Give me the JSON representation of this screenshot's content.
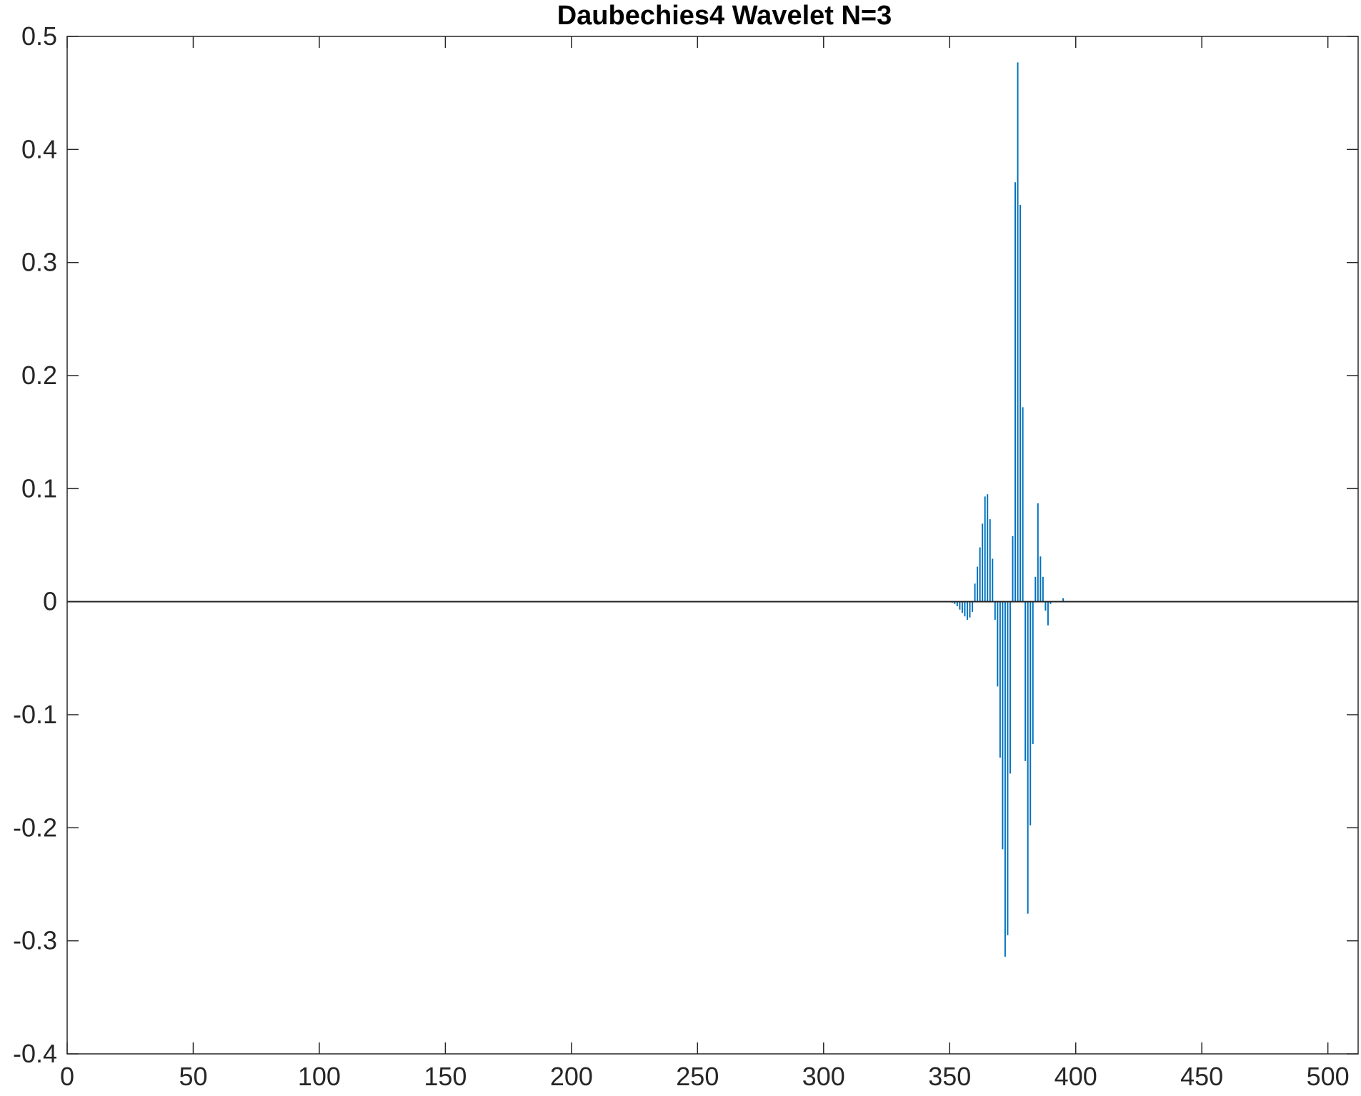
{
  "chart_data": {
    "type": "bar",
    "title": "Daubechies4 Wavelet N=3",
    "xlabel": "",
    "ylabel": "",
    "xlim": [
      0,
      512
    ],
    "ylim": [
      -0.4,
      0.5
    ],
    "xticks": [
      0,
      50,
      100,
      150,
      200,
      250,
      300,
      350,
      400,
      450,
      500
    ],
    "yticks": [
      -0.4,
      -0.3,
      -0.2,
      -0.1,
      0,
      0.1,
      0.2,
      0.3,
      0.4,
      0.5
    ],
    "xtick_labels": [
      "0",
      "50",
      "100",
      "150",
      "200",
      "250",
      "300",
      "350",
      "400",
      "450",
      "500"
    ],
    "ytick_labels": [
      "-0.4",
      "-0.3",
      "-0.2",
      "-0.1",
      "0",
      "0.1",
      "0.2",
      "0.3",
      "0.4",
      "0.5"
    ],
    "grid": false,
    "bar_color": "#0072BD",
    "baseline_color": "#262626",
    "series": [
      {
        "x": [
          351,
          352,
          353,
          354,
          355,
          356,
          357,
          358,
          359,
          360,
          361,
          362,
          363,
          364,
          365,
          366,
          367,
          368,
          369,
          370,
          371,
          372,
          373,
          374,
          375,
          376,
          377,
          378,
          379,
          380,
          381,
          382,
          383,
          384,
          385,
          386,
          387,
          388,
          389,
          390,
          391,
          392,
          393,
          394,
          395
        ],
        "values": [
          -0.001,
          -0.002,
          -0.004,
          -0.007,
          -0.01,
          -0.013,
          -0.016,
          -0.014,
          -0.009,
          0.016,
          0.031,
          0.048,
          0.069,
          0.093,
          0.095,
          0.073,
          0.038,
          -0.016,
          -0.075,
          -0.138,
          -0.219,
          -0.314,
          -0.295,
          -0.152,
          0.058,
          0.371,
          0.477,
          0.351,
          0.172,
          -0.141,
          -0.276,
          -0.198,
          -0.126,
          0.022,
          0.087,
          0.04,
          0.022,
          -0.008,
          -0.021,
          -0.002,
          0.0,
          0.0,
          0.0,
          0.0,
          0.003
        ]
      }
    ]
  }
}
